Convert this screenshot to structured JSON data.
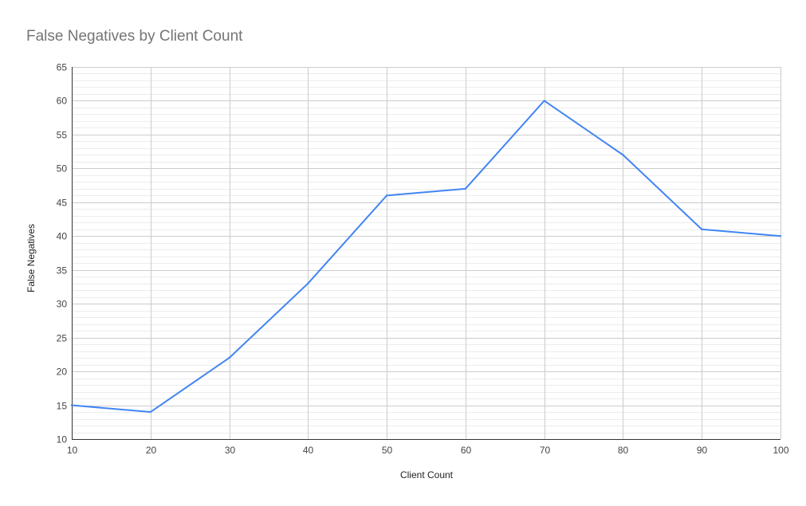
{
  "chart_data": {
    "type": "line",
    "title": "False Negatives by Client Count",
    "xlabel": "Client Count",
    "ylabel": "False Negatives",
    "x": [
      10,
      20,
      30,
      40,
      50,
      60,
      70,
      80,
      90,
      100
    ],
    "x_tick_labels": [
      "10",
      "20",
      "30",
      "40",
      "50",
      "60",
      "70",
      "80",
      "90",
      "100"
    ],
    "y_tick_labels": [
      "10",
      "15",
      "20",
      "25",
      "30",
      "35",
      "40",
      "45",
      "50",
      "55",
      "60",
      "65"
    ],
    "y_ticks": [
      10,
      15,
      20,
      25,
      30,
      35,
      40,
      45,
      50,
      55,
      60,
      65
    ],
    "xlim": [
      10,
      100
    ],
    "ylim": [
      10,
      65
    ],
    "grid": true,
    "legend": "none",
    "series": [
      {
        "values": [
          15,
          14,
          22,
          33,
          46,
          47,
          60,
          52,
          41,
          40
        ],
        "color": "#4285f4"
      }
    ],
    "colors": {
      "major_grid": "#cccccc",
      "minor_grid": "#ececec",
      "axis_line": "#333333"
    }
  }
}
